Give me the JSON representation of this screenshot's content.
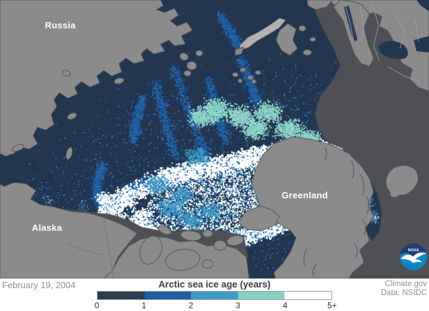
{
  "map": {
    "region_labels": [
      {
        "id": "russia",
        "text": "Russia"
      },
      {
        "id": "alaska",
        "text": "Alaska"
      },
      {
        "id": "greenland",
        "text": "Greenland"
      }
    ],
    "colors": {
      "open_ocean": "#4e5055",
      "land": "#8b8b8b",
      "land_outline": "#55575b",
      "land_light": "#b2b2b2",
      "border_line": "#a2a2a2",
      "fjord_line": "#5a5c60",
      "ice_age_0": "#223650",
      "ice_age_1": "#1d5fa5",
      "ice_age_1_alt": "#2f6fb5",
      "ice_age_2": "#3d9ac4",
      "ice_age_3": "#86cfc3",
      "ice_age_4": "#ffffff"
    },
    "noaa_logo": {
      "text": "NOAA",
      "dark": "#203d6e",
      "light": "#0e86c6"
    }
  },
  "footer": {
    "date": "February 19, 2004",
    "legend": {
      "title": "Arctic sea ice age (years)",
      "tick_labels": [
        "0",
        "1",
        "2",
        "3",
        "4",
        "5+"
      ],
      "segment_colors": [
        "#2e3e53",
        "#1d5fa5",
        "#3d9ac4",
        "#86cfc3",
        "#ffffff"
      ]
    },
    "attribution": {
      "line1": "Climate.gov",
      "line2": "Data: NSIDC"
    }
  }
}
